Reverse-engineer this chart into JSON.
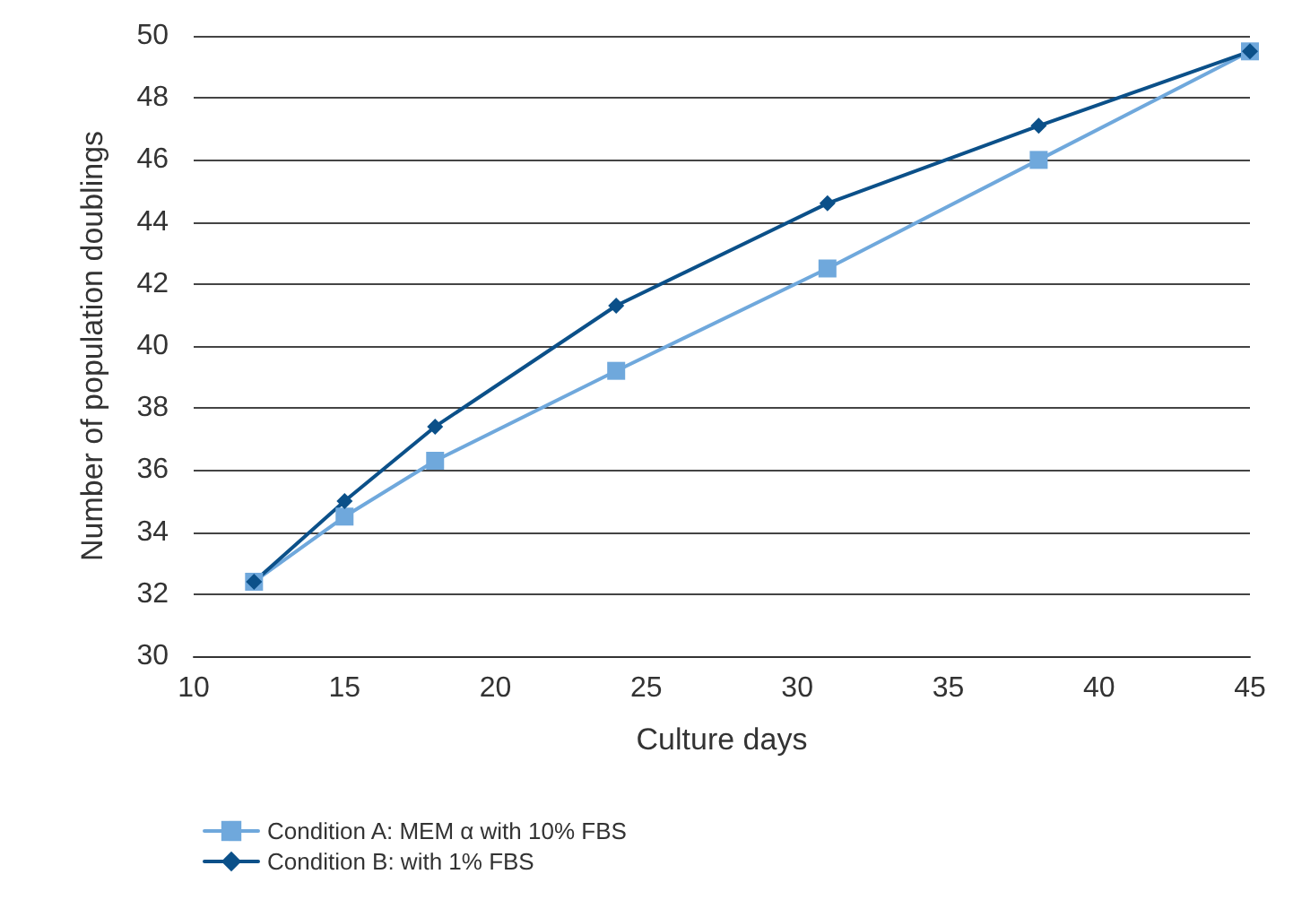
{
  "chart_data": {
    "type": "line",
    "xlabel": "Culture days",
    "ylabel": "Number of population doublings",
    "x": [
      12,
      15,
      18,
      24,
      31,
      38,
      45
    ],
    "series": [
      {
        "name": "Condition A: MEM α with 10% FBS",
        "color": "#6fa8dc",
        "marker": "square",
        "values": [
          32.4,
          34.5,
          36.3,
          39.2,
          42.5,
          46.0,
          49.5
        ]
      },
      {
        "name": "Condition B: with 1% FBS",
        "color": "#0b5089",
        "marker": "diamond",
        "values": [
          32.4,
          35.0,
          37.4,
          41.3,
          44.6,
          47.1,
          49.5
        ]
      }
    ],
    "xlim": [
      10,
      45
    ],
    "xticks": [
      10,
      15,
      20,
      25,
      30,
      35,
      40,
      45
    ],
    "ylim": [
      30,
      50
    ],
    "yticks": [
      30,
      32,
      34,
      36,
      38,
      40,
      42,
      44,
      46,
      48,
      50
    ],
    "grid": "y",
    "legend": "bottom left",
    "line_style": "solid"
  }
}
